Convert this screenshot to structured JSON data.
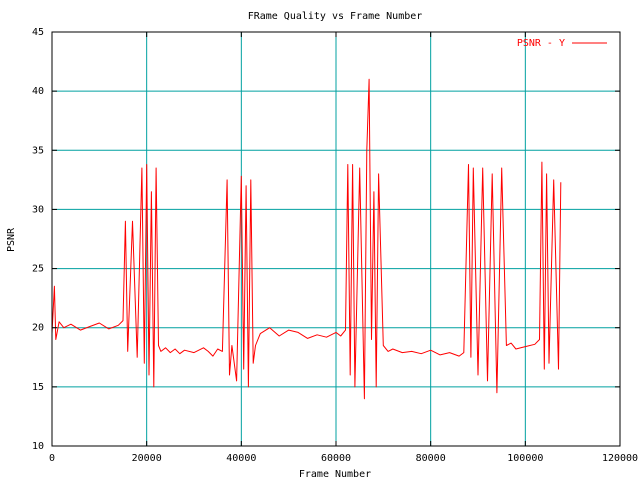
{
  "chart_data": {
    "type": "line",
    "title": "FRame Quality vs Frame Number",
    "xlabel": "Frame Number",
    "ylabel": "PSNR",
    "xlim": [
      0,
      120000
    ],
    "ylim": [
      10,
      45
    ],
    "xticks": [
      "0",
      "20000",
      "40000",
      "60000",
      "80000",
      "100000",
      "120000"
    ],
    "yticks": [
      "10",
      "15",
      "20",
      "25",
      "30",
      "35",
      "40",
      "45"
    ],
    "grid": true,
    "legend_position": "top-right",
    "colors": {
      "series": "#ff0000",
      "grid": "#00a0a0",
      "frame": "#000000"
    },
    "series": [
      {
        "name": "PSNR - Y",
        "x": [
          0,
          500,
          800,
          1500,
          2500,
          4000,
          6000,
          8000,
          10000,
          12000,
          14000,
          15000,
          15500,
          16000,
          17000,
          18000,
          19000,
          19500,
          20000,
          20500,
          21000,
          21500,
          22000,
          22500,
          23000,
          24000,
          25000,
          26000,
          27000,
          28000,
          30000,
          32000,
          33000,
          34000,
          35000,
          36000,
          37000,
          37500,
          38000,
          39000,
          40000,
          40500,
          41000,
          41500,
          42000,
          42500,
          43000,
          44000,
          46000,
          48000,
          50000,
          52000,
          54000,
          56000,
          58000,
          60000,
          61000,
          62000,
          62500,
          63000,
          63500,
          64000,
          65000,
          66000,
          66500,
          67000,
          67500,
          68000,
          68500,
          69000,
          70000,
          71000,
          72000,
          74000,
          76000,
          78000,
          80000,
          82000,
          84000,
          86000,
          87000,
          88000,
          88500,
          89000,
          90000,
          91000,
          92000,
          93000,
          94000,
          95000,
          96000,
          97000,
          98000,
          100000,
          102000,
          103000,
          103500,
          104000,
          104500,
          105000,
          106000,
          107000,
          107500
        ],
        "y": [
          19.5,
          23.5,
          19.0,
          20.5,
          20.0,
          20.3,
          19.8,
          20.1,
          20.4,
          19.9,
          20.2,
          20.6,
          29.0,
          18.0,
          29.0,
          17.5,
          33.5,
          17.0,
          33.8,
          16.0,
          31.5,
          15.0,
          33.5,
          18.5,
          18.0,
          18.3,
          17.9,
          18.2,
          17.8,
          18.1,
          17.9,
          18.3,
          18.0,
          17.6,
          18.2,
          18.0,
          32.5,
          16.0,
          18.5,
          15.5,
          32.8,
          16.5,
          32.0,
          15.0,
          32.5,
          17.0,
          18.5,
          19.5,
          20.0,
          19.3,
          19.8,
          19.6,
          19.1,
          19.4,
          19.2,
          19.6,
          19.3,
          19.8,
          33.8,
          16.0,
          33.8,
          15.0,
          33.5,
          14.0,
          35.0,
          41.0,
          19.0,
          31.5,
          15.0,
          33.0,
          18.5,
          18.0,
          18.2,
          17.9,
          18.0,
          17.8,
          18.1,
          17.7,
          17.9,
          17.6,
          17.9,
          33.8,
          17.5,
          33.5,
          16.0,
          33.5,
          15.5,
          33.0,
          14.5,
          33.5,
          18.5,
          18.7,
          18.2,
          18.4,
          18.6,
          19.0,
          34.0,
          16.5,
          33.0,
          17.0,
          32.5,
          16.5,
          32.3
        ]
      }
    ]
  }
}
